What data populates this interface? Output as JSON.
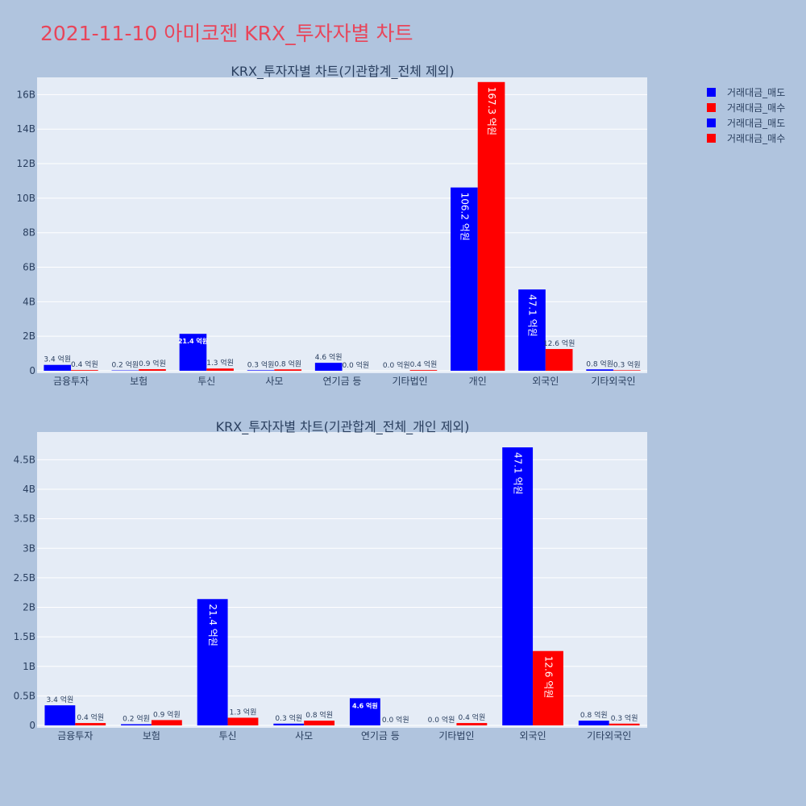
{
  "page": {
    "title": "2021-11-10 아미코젠 KRX_투자자별 차트"
  },
  "legend": [
    {
      "label": "거래대금_매도",
      "color": "#0000ff"
    },
    {
      "label": "거래대금_매수",
      "color": "#ff0000"
    },
    {
      "label": "거래대금_매도",
      "color": "#0000ff"
    },
    {
      "label": "거래대금_매수",
      "color": "#ff0000"
    }
  ],
  "chart_data": [
    {
      "type": "bar",
      "title": "KRX_투자자별 차트(기관합계_전체 제외)",
      "categories": [
        "금융투자",
        "보험",
        "투신",
        "사모",
        "연기금 등",
        "기타법인",
        "개인",
        "외국인",
        "기타외국인"
      ],
      "ylim": [
        0,
        17000000000
      ],
      "yticks": [
        0,
        2000000000,
        4000000000,
        6000000000,
        8000000000,
        10000000000,
        12000000000,
        14000000000,
        16000000000
      ],
      "yticklabels": [
        "0",
        "2B",
        "4B",
        "6B",
        "8B",
        "10B",
        "12B",
        "14B",
        "16B"
      ],
      "series": [
        {
          "name": "거래대금_매도",
          "color": "#0000ff",
          "values": [
            340000000,
            20000000,
            2140000000,
            30000000,
            460000000,
            0,
            10620000000,
            4710000000,
            80000000
          ],
          "labels": [
            "3.4 억원",
            "0.2 억원",
            "21.4 억원",
            "0.3 억원",
            "4.6 억원",
            "0.0 억원",
            "106.2 억원",
            "47.1 억원",
            "0.8 억원"
          ]
        },
        {
          "name": "거래대금_매수",
          "color": "#ff0000",
          "values": [
            40000000,
            90000000,
            130000000,
            80000000,
            0,
            40000000,
            16730000000,
            1260000000,
            30000000
          ],
          "labels": [
            "0.4 억원",
            "0.9 억원",
            "1.3 억원",
            "0.8 억원",
            "0.0 억원",
            "0.4 억원",
            "167.3 억원",
            "12.6 억원",
            "0.3 억원"
          ]
        }
      ]
    },
    {
      "type": "bar",
      "title": "KRX_투자자별 차트(기관합계_전체_개인 제외)",
      "categories": [
        "금융투자",
        "보험",
        "투신",
        "사모",
        "연기금 등",
        "기타법인",
        "외국인",
        "기타외국인"
      ],
      "ylim": [
        0,
        4970000000
      ],
      "yticks": [
        0,
        500000000,
        1000000000,
        1500000000,
        2000000000,
        2500000000,
        3000000000,
        3500000000,
        4000000000,
        4500000000
      ],
      "yticklabels": [
        "0",
        "0.5B",
        "1B",
        "1.5B",
        "2B",
        "2.5B",
        "3B",
        "3.5B",
        "4B",
        "4.5B"
      ],
      "series": [
        {
          "name": "거래대금_매도",
          "color": "#0000ff",
          "values": [
            340000000,
            20000000,
            2140000000,
            30000000,
            460000000,
            0,
            4710000000,
            80000000
          ],
          "labels": [
            "3.4 억원",
            "0.2 억원",
            "21.4 억원",
            "0.3 억원",
            "4.6 억원",
            "0.0 억원",
            "47.1 억원",
            "0.8 억원"
          ]
        },
        {
          "name": "거래대금_매수",
          "color": "#ff0000",
          "values": [
            40000000,
            90000000,
            130000000,
            80000000,
            0,
            40000000,
            1260000000,
            30000000
          ],
          "labels": [
            "0.4 억원",
            "0.9 억원",
            "1.3 억원",
            "0.8 억원",
            "0.0 억원",
            "0.4 억원",
            "12.6 억원",
            "0.3 억원"
          ]
        }
      ]
    }
  ]
}
